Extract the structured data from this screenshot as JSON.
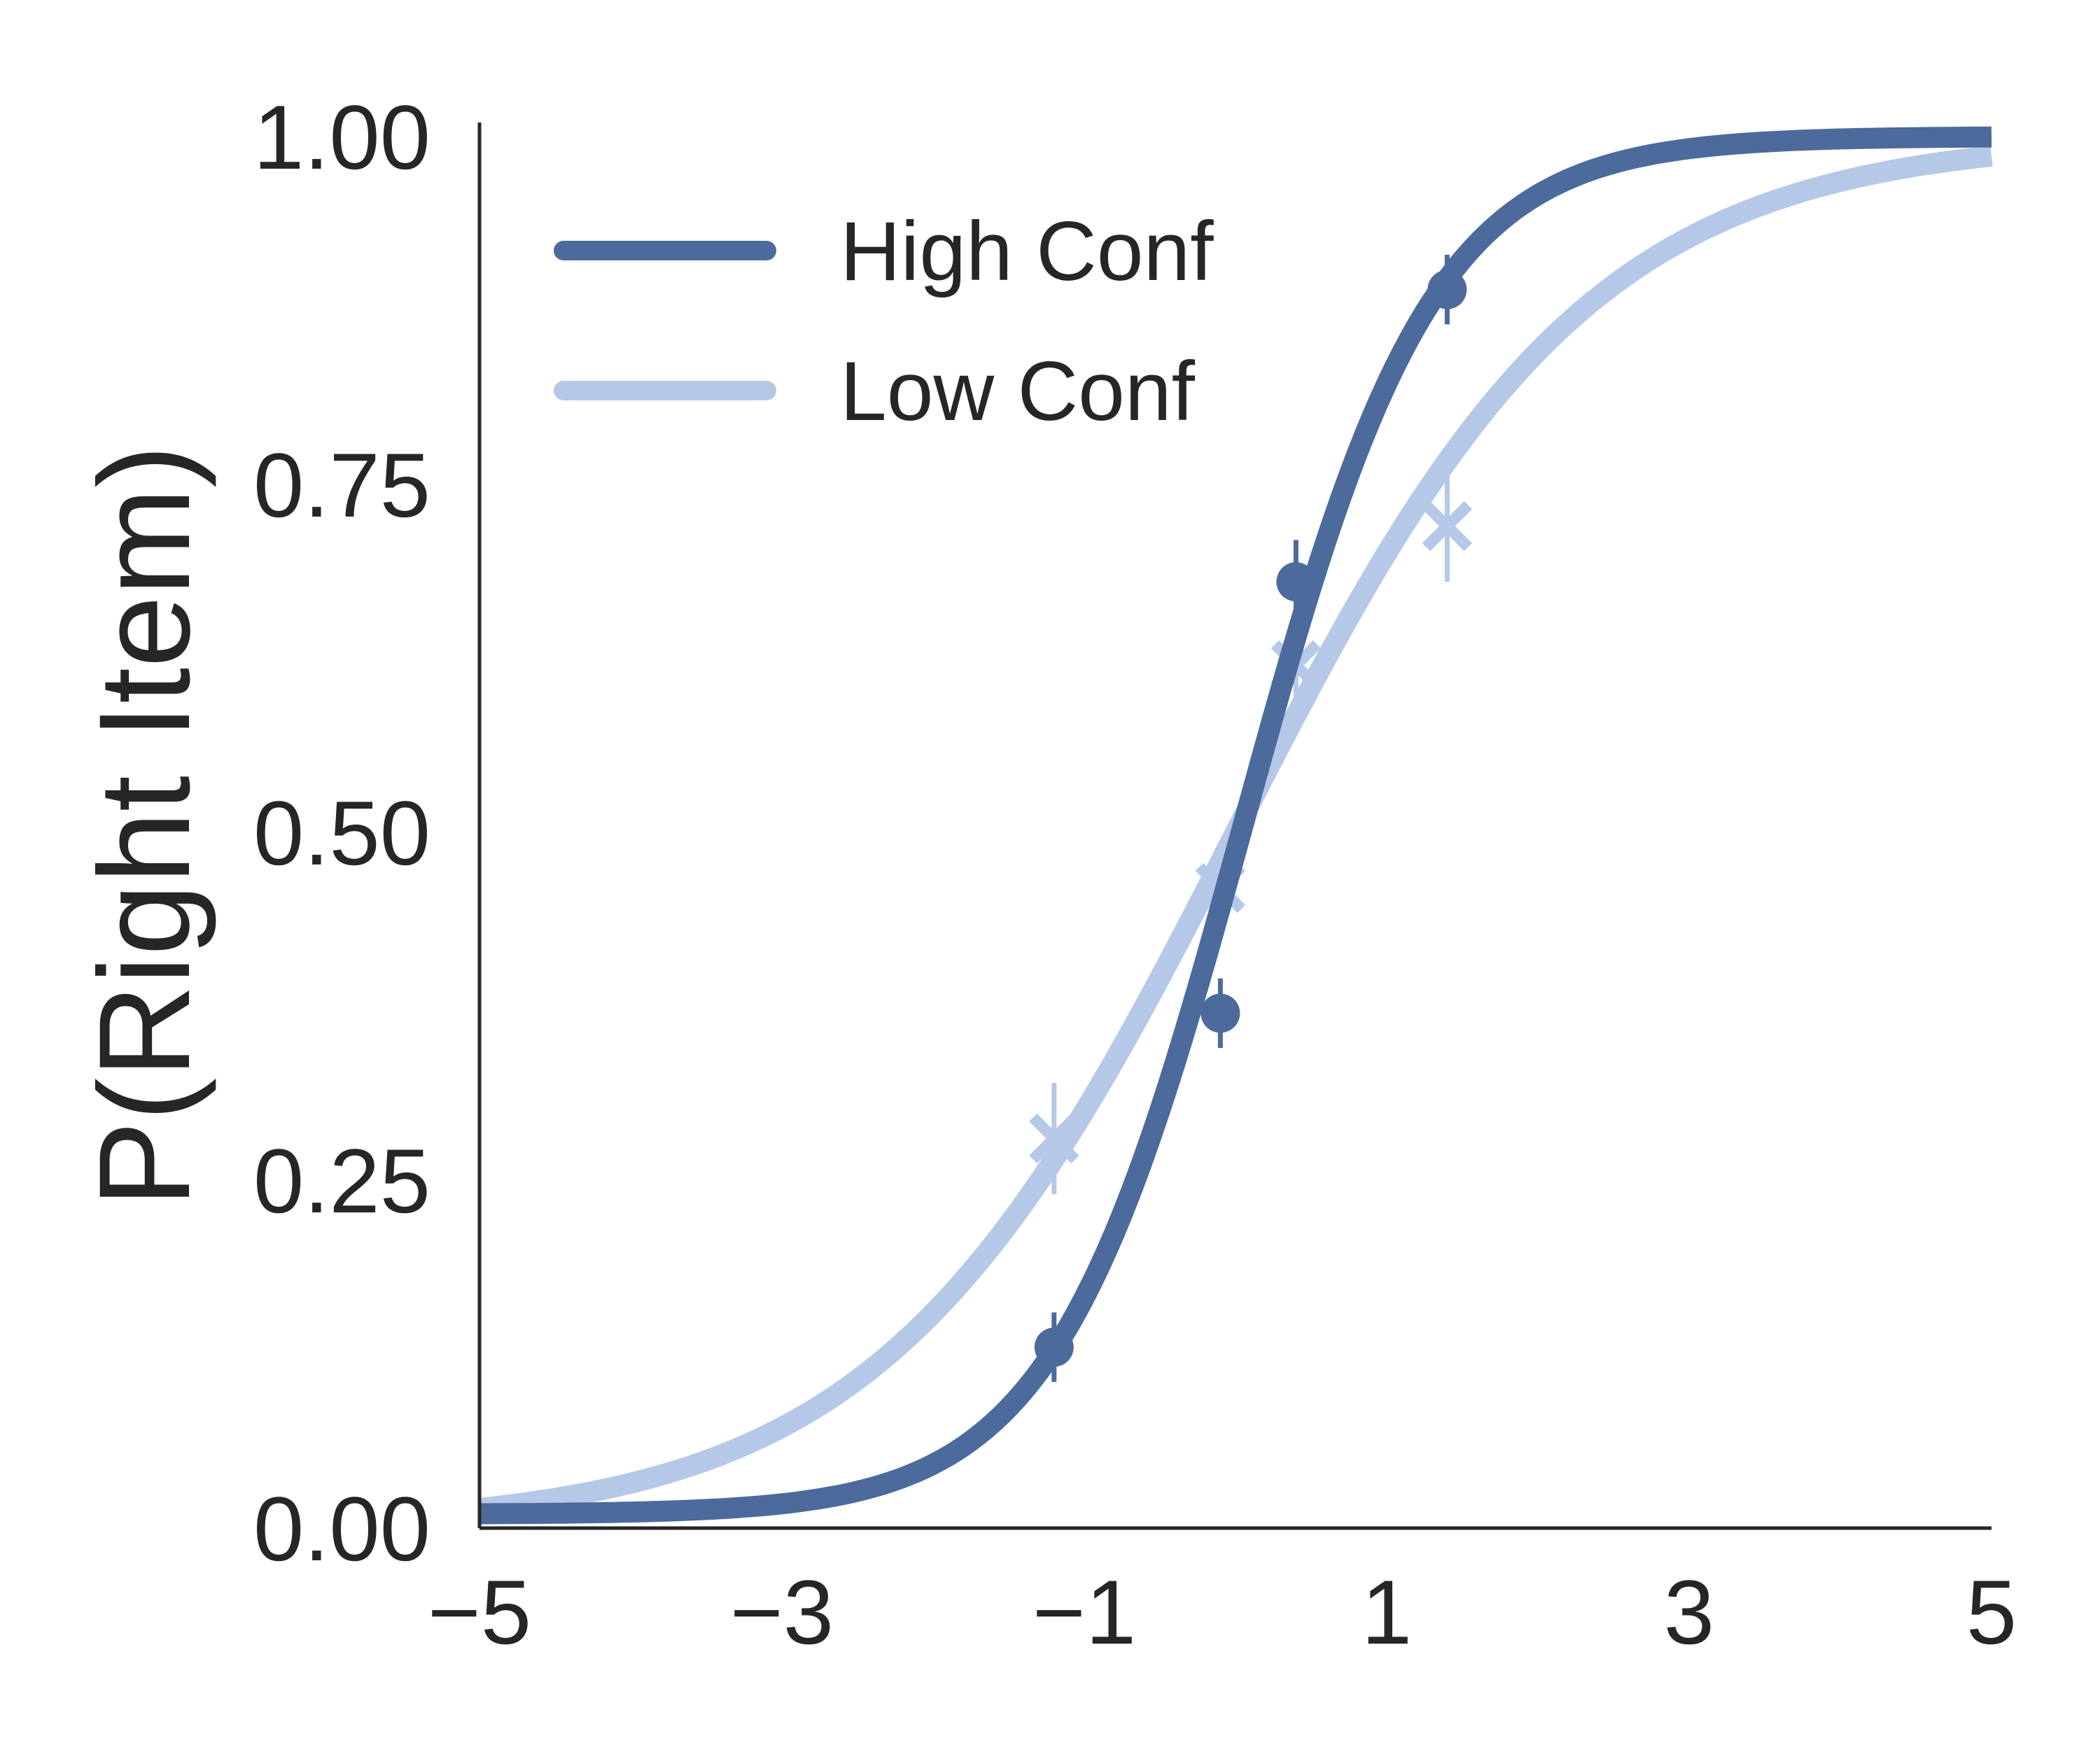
{
  "chart_data": {
    "type": "line",
    "title": "",
    "xlabel": "",
    "ylabel": "P(Right Item)",
    "xlim": [
      -5,
      5
    ],
    "ylim": [
      0,
      1
    ],
    "x_ticks": [
      "−5",
      "−3",
      "−1",
      "1",
      "3",
      "5"
    ],
    "x_tick_values": [
      -5,
      -3,
      -1,
      1,
      3,
      5
    ],
    "y_ticks": [
      "0.00",
      "0.25",
      "0.50",
      "0.75",
      "1.00"
    ],
    "y_tick_values": [
      0,
      0.25,
      0.5,
      0.75,
      1.0
    ],
    "grid": false,
    "legend_position": "top-left",
    "series": [
      {
        "name": "High Conf",
        "color": "#4c6a9c",
        "curve": {
          "form": "logistic",
          "midpoint": 0.05,
          "slope": 1.6,
          "lower": 0.01,
          "upper": 1.0
        },
        "points": [
          {
            "x": -1.2,
            "y": 0.13,
            "err": 0.025
          },
          {
            "x": -0.1,
            "y": 0.37,
            "err": 0.025
          },
          {
            "x": 0.4,
            "y": 0.68,
            "err": 0.03
          },
          {
            "x": 1.4,
            "y": 0.89,
            "err": 0.025
          }
        ],
        "marker": "circle"
      },
      {
        "name": "Low Conf",
        "color": "#b5c8e8",
        "curve": {
          "form": "logistic",
          "midpoint": 0.0,
          "slope": 0.85,
          "lower": 0.0,
          "upper": 1.0
        },
        "points": [
          {
            "x": -1.2,
            "y": 0.28,
            "err": 0.04
          },
          {
            "x": -0.1,
            "y": 0.46,
            "err": 0.02
          },
          {
            "x": 0.4,
            "y": 0.62,
            "err": 0.025
          },
          {
            "x": 1.4,
            "y": 0.72,
            "err": 0.04
          }
        ],
        "marker": "x"
      }
    ]
  }
}
